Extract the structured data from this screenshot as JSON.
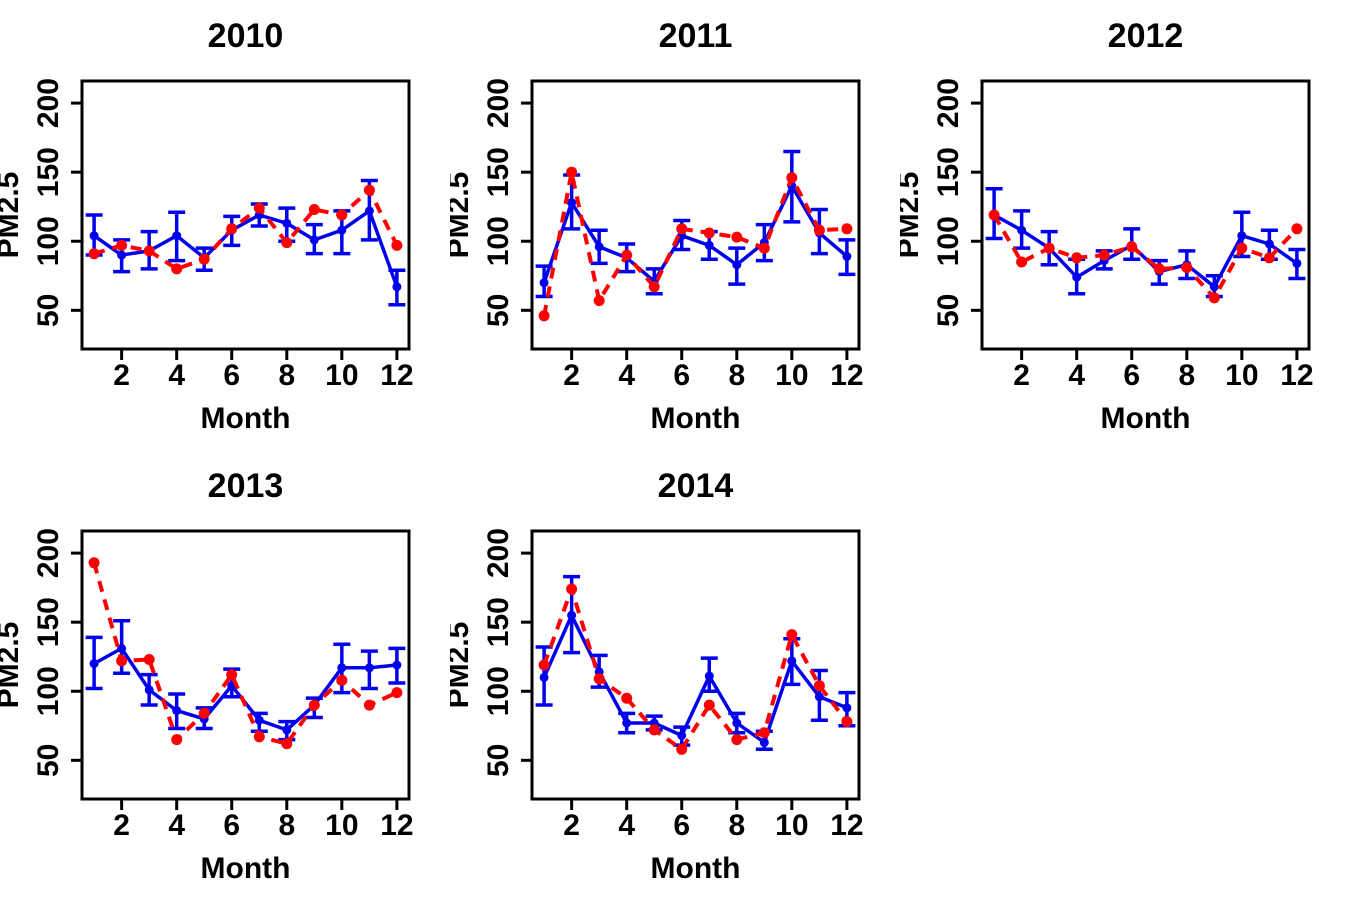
{
  "figure": {
    "background_color": "#ffffff",
    "text_color": "#000000",
    "frame_color": "#000000",
    "solid_series_color": "#0000EE",
    "dashed_series_color": "#FF0000"
  },
  "chart_data": [
    {
      "type": "line",
      "title": "2010",
      "xlabel": "Month",
      "ylabel": "PM2.5",
      "x": [
        1,
        2,
        3,
        4,
        5,
        6,
        7,
        8,
        9,
        10,
        11,
        12
      ],
      "xticks": [
        2,
        4,
        6,
        8,
        10,
        12
      ],
      "yticks": [
        50,
        100,
        150,
        200
      ],
      "xlim": [
        0.56,
        12.44
      ],
      "ylim": [
        22,
        216
      ],
      "grid": false,
      "series": [
        {
          "name": "blue-solid-errorbar-series",
          "color": "#0000EE",
          "line_style": "solid",
          "marker": "circle",
          "values": [
            104,
            90,
            93,
            104,
            88,
            108,
            119,
            113,
            101,
            108,
            122,
            67
          ],
          "error_low": [
            90,
            78,
            80,
            86,
            79,
            97,
            111,
            100,
            91,
            91,
            101,
            54
          ],
          "error_high": [
            119,
            101,
            107,
            121,
            95,
            118,
            127,
            124,
            112,
            122,
            144,
            79
          ]
        },
        {
          "name": "red-dashed-series",
          "color": "#FF0000",
          "line_style": "dashed",
          "marker": "circle",
          "values": [
            91,
            97,
            93,
            80,
            87,
            109,
            124,
            99,
            123,
            119,
            137,
            97
          ]
        }
      ]
    },
    {
      "type": "line",
      "title": "2011",
      "xlabel": "Month",
      "ylabel": "PM2.5",
      "x": [
        1,
        2,
        3,
        4,
        5,
        6,
        7,
        8,
        9,
        10,
        11,
        12
      ],
      "xticks": [
        2,
        4,
        6,
        8,
        10,
        12
      ],
      "yticks": [
        50,
        100,
        150,
        200
      ],
      "xlim": [
        0.56,
        12.44
      ],
      "ylim": [
        22,
        216
      ],
      "grid": false,
      "series": [
        {
          "name": "blue-solid-errorbar-series",
          "color": "#0000EE",
          "line_style": "solid",
          "marker": "circle",
          "values": [
            70,
            128,
            96,
            88,
            71,
            104,
            97,
            83,
            99,
            140,
            106,
            89
          ],
          "error_low": [
            60,
            109,
            84,
            78,
            62,
            94,
            87,
            69,
            86,
            114,
            91,
            76
          ],
          "error_high": [
            82,
            148,
            108,
            98,
            80,
            115,
            107,
            95,
            112,
            165,
            123,
            101
          ]
        },
        {
          "name": "red-dashed-series",
          "color": "#FF0000",
          "line_style": "dashed",
          "marker": "circle",
          "values": [
            46,
            150,
            57,
            90,
            67,
            109,
            106,
            103,
            95,
            146,
            108,
            109
          ]
        }
      ]
    },
    {
      "type": "line",
      "title": "2012",
      "xlabel": "Month",
      "ylabel": "PM2.5",
      "x": [
        1,
        2,
        3,
        4,
        5,
        6,
        7,
        8,
        9,
        10,
        11,
        12
      ],
      "xticks": [
        2,
        4,
        6,
        8,
        10,
        12
      ],
      "yticks": [
        50,
        100,
        150,
        200
      ],
      "xlim": [
        0.56,
        12.44
      ],
      "ylim": [
        22,
        216
      ],
      "grid": false,
      "series": [
        {
          "name": "blue-solid-errorbar-series",
          "color": "#0000EE",
          "line_style": "solid",
          "marker": "circle",
          "values": [
            119,
            108,
            95,
            74,
            86,
            97,
            78,
            83,
            67,
            104,
            98,
            84
          ],
          "error_low": [
            102,
            95,
            83,
            62,
            80,
            87,
            69,
            73,
            60,
            89,
            87,
            73
          ],
          "error_high": [
            138,
            122,
            107,
            87,
            93,
            109,
            86,
            93,
            75,
            121,
            108,
            94
          ]
        },
        {
          "name": "red-dashed-series",
          "color": "#FF0000",
          "line_style": "dashed",
          "marker": "circle",
          "values": [
            119,
            85,
            95,
            88,
            90,
            96,
            80,
            81,
            59,
            95,
            88,
            109
          ]
        }
      ]
    },
    {
      "type": "line",
      "title": "2013",
      "xlabel": "Month",
      "ylabel": "PM2.5",
      "x": [
        1,
        2,
        3,
        4,
        5,
        6,
        7,
        8,
        9,
        10,
        11,
        12
      ],
      "xticks": [
        2,
        4,
        6,
        8,
        10,
        12
      ],
      "yticks": [
        50,
        100,
        150,
        200
      ],
      "xlim": [
        0.56,
        12.44
      ],
      "ylim": [
        22,
        216
      ],
      "grid": false,
      "series": [
        {
          "name": "blue-solid-errorbar-series",
          "color": "#0000EE",
          "line_style": "solid",
          "marker": "circle",
          "values": [
            120,
            131,
            101,
            86,
            80,
            104,
            79,
            72,
            90,
            117,
            117,
            119
          ],
          "error_low": [
            102,
            113,
            90,
            73,
            73,
            96,
            71,
            65,
            81,
            99,
            102,
            106
          ],
          "error_high": [
            139,
            151,
            112,
            98,
            88,
            116,
            84,
            78,
            95,
            134,
            129,
            131
          ]
        },
        {
          "name": "red-dashed-series",
          "color": "#FF0000",
          "line_style": "dashed",
          "marker": "circle",
          "values": [
            193,
            122,
            123,
            65,
            84,
            112,
            67,
            62,
            90,
            108,
            90,
            99
          ]
        }
      ]
    },
    {
      "type": "line",
      "title": "2014",
      "xlabel": "Month",
      "ylabel": "PM2.5",
      "x": [
        1,
        2,
        3,
        4,
        5,
        6,
        7,
        8,
        9,
        10,
        11,
        12
      ],
      "xticks": [
        2,
        4,
        6,
        8,
        10,
        12
      ],
      "yticks": [
        50,
        100,
        150,
        200
      ],
      "xlim": [
        0.56,
        12.44
      ],
      "ylim": [
        22,
        216
      ],
      "grid": false,
      "series": [
        {
          "name": "blue-solid-errorbar-series",
          "color": "#0000EE",
          "line_style": "solid",
          "marker": "circle",
          "values": [
            110,
            155,
            114,
            77,
            77,
            68,
            111,
            77,
            63,
            122,
            96,
            88
          ],
          "error_low": [
            90,
            128,
            103,
            70,
            72,
            61,
            100,
            70,
            58,
            105,
            79,
            75
          ],
          "error_high": [
            132,
            183,
            126,
            84,
            82,
            74,
            124,
            84,
            71,
            138,
            115,
            99
          ]
        },
        {
          "name": "red-dashed-series",
          "color": "#FF0000",
          "line_style": "dashed",
          "marker": "circle",
          "values": [
            119,
            174,
            109,
            95,
            72,
            58,
            90,
            65,
            70,
            141,
            104,
            78
          ]
        }
      ]
    }
  ]
}
